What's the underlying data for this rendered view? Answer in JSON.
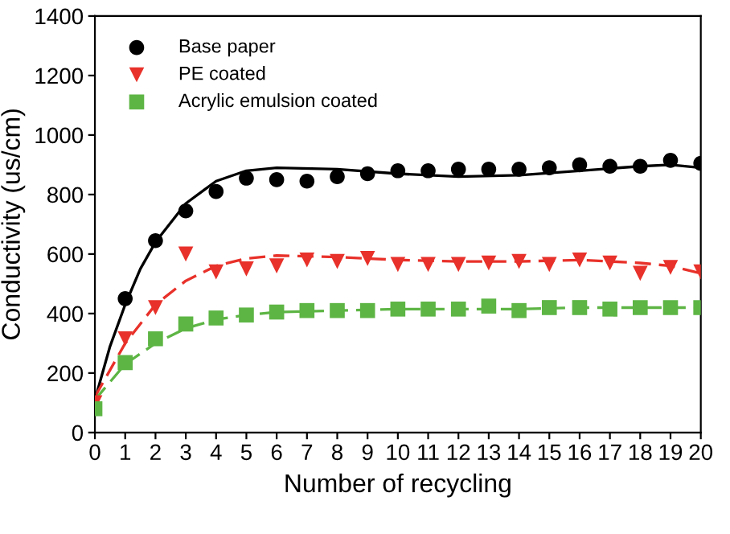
{
  "chart_data": {
    "type": "scatter",
    "xlabel": "Number of recycling",
    "ylabel": "Conductivity (us/cm)",
    "xlim": [
      0,
      20
    ],
    "xticks": [
      0,
      1,
      2,
      3,
      4,
      5,
      6,
      7,
      8,
      9,
      10,
      11,
      12,
      13,
      14,
      15,
      16,
      17,
      18,
      19,
      20
    ],
    "ylim": [
      0,
      1400
    ],
    "yticks": [
      0,
      200,
      400,
      600,
      800,
      1000,
      1200,
      1400
    ],
    "grid": false,
    "legend": "top left",
    "x": [
      0,
      1,
      2,
      3,
      4,
      5,
      6,
      7,
      8,
      9,
      10,
      11,
      12,
      13,
      14,
      15,
      16,
      17,
      18,
      19,
      20
    ],
    "series": [
      {
        "name": "Base paper",
        "marker": "circle",
        "color": "#000000",
        "values": [
          null,
          450,
          645,
          745,
          810,
          855,
          850,
          845,
          860,
          870,
          880,
          880,
          885,
          885,
          885,
          890,
          900,
          895,
          895,
          915,
          905
        ]
      },
      {
        "name": "PE coated",
        "marker": "triangle",
        "color": "#e8312a",
        "values": [
          100,
          315,
          420,
          600,
          540,
          550,
          560,
          580,
          575,
          585,
          565,
          565,
          565,
          570,
          575,
          565,
          580,
          570,
          535,
          555,
          540
        ]
      },
      {
        "name": "Acrylic emulsion coated",
        "marker": "square",
        "color": "#5db544",
        "values": [
          80,
          235,
          315,
          365,
          385,
          395,
          405,
          410,
          410,
          410,
          415,
          415,
          415,
          425,
          410,
          420,
          420,
          415,
          420,
          420,
          420
        ]
      },
      {
        "type": "line",
        "line_style": "solid",
        "color": "#000000",
        "x": [
          0,
          0.5,
          1,
          1.5,
          2,
          3,
          4,
          5,
          6,
          8,
          10,
          12,
          14,
          16,
          18,
          19,
          20
        ],
        "values": [
          110,
          290,
          430,
          550,
          640,
          770,
          845,
          880,
          890,
          885,
          870,
          860,
          865,
          880,
          895,
          900,
          890
        ]
      },
      {
        "type": "line",
        "line_style": "dashed",
        "color": "#e8312a",
        "x": [
          0,
          1,
          2,
          3,
          4,
          5,
          6,
          8,
          10,
          12,
          14,
          16,
          18,
          19,
          20
        ],
        "values": [
          120,
          300,
          430,
          510,
          560,
          585,
          595,
          590,
          580,
          575,
          575,
          580,
          570,
          560,
          535
        ]
      },
      {
        "type": "line",
        "line_style": "dashed",
        "color": "#5db544",
        "x": [
          0,
          1,
          2,
          3,
          4,
          5,
          6,
          8,
          10,
          14,
          16,
          20
        ],
        "values": [
          110,
          230,
          300,
          350,
          380,
          395,
          405,
          410,
          415,
          415,
          420,
          420
        ]
      }
    ]
  }
}
